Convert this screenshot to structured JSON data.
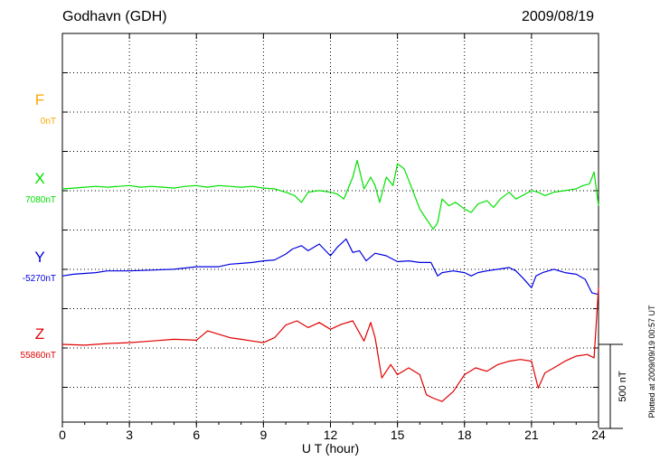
{
  "header": {
    "station": "Godhavn (GDH)",
    "date": "2009/08/19"
  },
  "footer_note": "Plotted at 2009/09/19 00:57 UT",
  "scale_label": "500 nT",
  "chart_data": {
    "type": "line",
    "xlabel": "U T (hour)",
    "xlim": [
      0,
      24
    ],
    "x_ticks": [
      "0",
      "3",
      "6",
      "9",
      "12",
      "15",
      "18",
      "21",
      "24"
    ],
    "grid": "dotted",
    "scale_bar_nT": 500,
    "series": [
      {
        "name": "F",
        "baseline_label": "0nT",
        "color": "#FFA500",
        "x": [],
        "y": []
      },
      {
        "name": "X",
        "baseline_label": "7080nT",
        "color": "#00E000",
        "x": [
          0,
          0.5,
          1,
          1.5,
          2,
          2.5,
          3,
          3.5,
          4,
          4.5,
          5,
          5.5,
          6,
          6.5,
          7,
          7.5,
          8,
          8.5,
          9,
          9.5,
          10,
          10.4,
          10.7,
          11,
          11.5,
          12,
          12.3,
          12.6,
          13,
          13.2,
          13.5,
          13.8,
          14,
          14.2,
          14.5,
          14.8,
          15,
          15.3,
          15.6,
          16,
          16.3,
          16.6,
          16.8,
          17,
          17.3,
          17.6,
          18,
          18.3,
          18.6,
          19,
          19.3,
          19.6,
          20,
          20.3,
          20.6,
          21,
          21.3,
          21.6,
          22,
          22.5,
          23,
          23.3,
          23.6,
          23.8,
          24
        ],
        "y": [
          7080,
          7085,
          7090,
          7095,
          7090,
          7095,
          7100,
          7090,
          7095,
          7090,
          7085,
          7095,
          7100,
          7090,
          7100,
          7095,
          7090,
          7095,
          7085,
          7080,
          7060,
          7040,
          7000,
          7060,
          7070,
          7060,
          7050,
          7020,
          7150,
          7250,
          7080,
          7150,
          7100,
          7000,
          7150,
          7100,
          7230,
          7200,
          7100,
          6960,
          6900,
          6840,
          6880,
          7020,
          6980,
          7000,
          6960,
          6940,
          6990,
          7010,
          6970,
          7020,
          7060,
          7020,
          7040,
          7070,
          7060,
          7040,
          7060,
          7070,
          7080,
          7100,
          7110,
          7180,
          6980
        ]
      },
      {
        "name": "Y",
        "baseline_label": "-5270nT",
        "color": "#0000E0",
        "x": [
          0,
          0.5,
          1,
          1.5,
          2,
          3,
          4,
          5,
          6,
          7,
          7.5,
          8,
          8.5,
          9,
          9.5,
          10,
          10.3,
          10.7,
          11,
          11.5,
          12,
          12.3,
          12.7,
          13,
          13.3,
          13.6,
          14,
          14.5,
          15,
          15.5,
          16,
          16.5,
          16.8,
          17,
          17.5,
          18,
          18.3,
          18.6,
          19,
          19.5,
          20,
          20.3,
          20.6,
          21,
          21.2,
          21.5,
          22,
          22.5,
          23,
          23.4,
          23.7,
          24
        ],
        "y": [
          -5320,
          -5310,
          -5305,
          -5300,
          -5290,
          -5290,
          -5285,
          -5280,
          -5265,
          -5265,
          -5250,
          -5245,
          -5240,
          -5230,
          -5225,
          -5190,
          -5160,
          -5140,
          -5170,
          -5130,
          -5200,
          -5150,
          -5100,
          -5180,
          -5170,
          -5230,
          -5185,
          -5200,
          -5235,
          -5230,
          -5240,
          -5240,
          -5320,
          -5300,
          -5290,
          -5300,
          -5320,
          -5300,
          -5290,
          -5280,
          -5270,
          -5290,
          -5330,
          -5390,
          -5320,
          -5300,
          -5280,
          -5300,
          -5310,
          -5340,
          -5420,
          -5430
        ]
      },
      {
        "name": "Z",
        "baseline_label": "55860nT",
        "color": "#E00000",
        "x": [
          0,
          1,
          2,
          3,
          4,
          5,
          6,
          6.5,
          7,
          7.5,
          8,
          8.5,
          9,
          9.5,
          10,
          10.5,
          11,
          11.5,
          12,
          12.5,
          13,
          13.5,
          13.8,
          14,
          14.3,
          14.7,
          15,
          15.5,
          16,
          16.3,
          16.6,
          17,
          17.5,
          18,
          18.5,
          19,
          19.5,
          20,
          20.5,
          21,
          21.3,
          21.6,
          22,
          22.5,
          23,
          23.5,
          23.8,
          24
        ],
        "y": [
          55860,
          55855,
          55865,
          55870,
          55880,
          55890,
          55885,
          55940,
          55920,
          55900,
          55890,
          55880,
          55870,
          55900,
          55975,
          56000,
          55960,
          55990,
          55950,
          55980,
          56000,
          55880,
          55990,
          55900,
          55660,
          55740,
          55680,
          55720,
          55680,
          55560,
          55540,
          55520,
          55580,
          55680,
          55720,
          55700,
          55740,
          55760,
          55770,
          55760,
          55600,
          55690,
          55720,
          55760,
          55790,
          55800,
          55780,
          56200
        ]
      }
    ]
  }
}
